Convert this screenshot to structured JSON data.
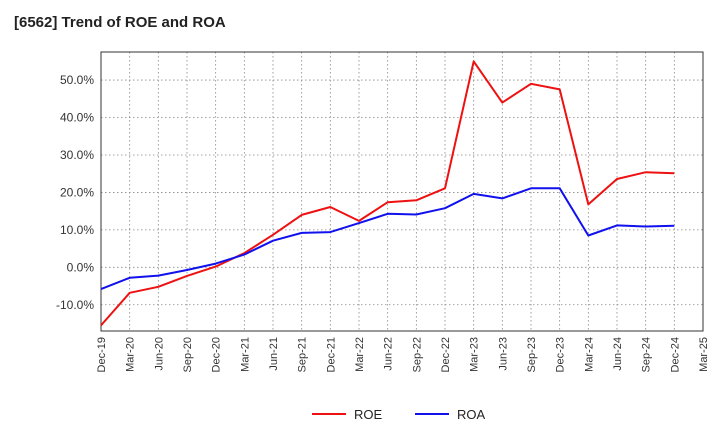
{
  "chart_data": {
    "type": "line",
    "title": "[6562]  Trend of ROE and ROA",
    "xlabel": "",
    "ylabel": "",
    "ylim": [
      -17,
      57.5
    ],
    "y_ticks": [
      -10,
      0,
      10,
      20,
      30,
      40,
      50
    ],
    "y_tick_labels": [
      "-10.0%",
      "0.0%",
      "10.0%",
      "20.0%",
      "30.0%",
      "40.0%",
      "50.0%"
    ],
    "x_tick_labels": [
      "Dec-19",
      "Mar-20",
      "Jun-20",
      "Sep-20",
      "Dec-20",
      "Mar-21",
      "Jun-21",
      "Sep-21",
      "Dec-21",
      "Mar-22",
      "Jun-22",
      "Sep-22",
      "Dec-22",
      "Mar-23",
      "Jun-23",
      "Sep-23",
      "Dec-23",
      "Mar-24",
      "Jun-24",
      "Sep-24",
      "Dec-24",
      "Mar-25"
    ],
    "grid": true,
    "legend_position": "bottom-center",
    "series": [
      {
        "name": "ROE",
        "color": "#ee1111",
        "x": [
          "Dec-19",
          "Mar-20",
          "Jun-20",
          "Sep-20",
          "Dec-20",
          "Mar-21",
          "Jun-21",
          "Sep-21",
          "Dec-21",
          "Mar-22",
          "Jun-22",
          "Sep-22",
          "Dec-22",
          "Mar-23",
          "Jun-23",
          "Sep-23",
          "Dec-23",
          "Mar-24",
          "Jun-24",
          "Sep-24",
          "Dec-24"
        ],
        "values": [
          -15.5,
          -6.8,
          -5.2,
          -2.3,
          0.2,
          3.8,
          8.7,
          14.0,
          16.1,
          12.4,
          17.4,
          17.9,
          21.1,
          55.0,
          44.0,
          49.0,
          47.5,
          16.8,
          23.6,
          25.4,
          25.1
        ]
      },
      {
        "name": "ROA",
        "color": "#1111ee",
        "x": [
          "Dec-19",
          "Mar-20",
          "Jun-20",
          "Sep-20",
          "Dec-20",
          "Mar-21",
          "Jun-21",
          "Sep-21",
          "Dec-21",
          "Mar-22",
          "Jun-22",
          "Sep-22",
          "Dec-22",
          "Mar-23",
          "Jun-23",
          "Sep-23",
          "Dec-23",
          "Mar-24",
          "Jun-24",
          "Sep-24",
          "Dec-24"
        ],
        "values": [
          -5.8,
          -2.8,
          -2.2,
          -0.7,
          1.0,
          3.4,
          7.1,
          9.2,
          9.4,
          11.8,
          14.3,
          14.1,
          15.8,
          19.6,
          18.4,
          21.1,
          21.1,
          8.5,
          11.2,
          10.9,
          11.1
        ]
      }
    ]
  }
}
